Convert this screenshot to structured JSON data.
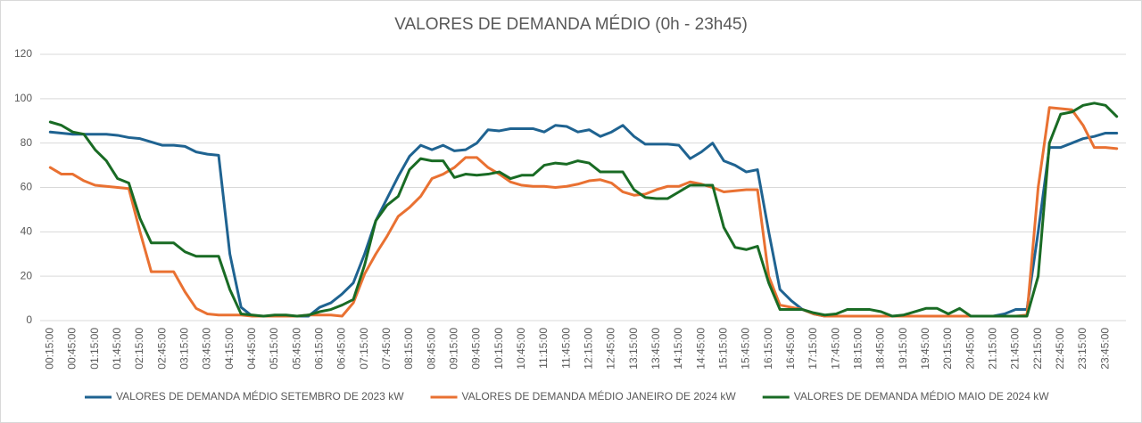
{
  "chart_data": {
    "type": "line",
    "title": "VALORES DE DEMANDA MÉDIO (0h - 23h45)",
    "categories": [
      "00:15:00",
      null,
      "00:45:00",
      null,
      "01:15:00",
      null,
      "01:45:00",
      null,
      "02:15:00",
      null,
      "02:45:00",
      null,
      "03:15:00",
      null,
      "03:45:00",
      null,
      "04:15:00",
      null,
      "04:45:00",
      null,
      "05:15:00",
      null,
      "05:45:00",
      null,
      "06:15:00",
      null,
      "06:45:00",
      null,
      "07:15:00",
      null,
      "07:45:00",
      null,
      "08:15:00",
      null,
      "08:45:00",
      null,
      "09:15:00",
      null,
      "09:45:00",
      null,
      "10:15:00",
      null,
      "10:45:00",
      null,
      "11:15:00",
      null,
      "11:45:00",
      null,
      "12:15:00",
      null,
      "12:45:00",
      null,
      "13:15:00",
      null,
      "13:45:00",
      null,
      "14:15:00",
      null,
      "14:45:00",
      null,
      "15:15:00",
      null,
      "15:45:00",
      null,
      "16:15:00",
      null,
      "16:45:00",
      null,
      "17:15:00",
      null,
      "17:45:00",
      null,
      "18:15:00",
      null,
      "18:45:00",
      null,
      "19:15:00",
      null,
      "19:45:00",
      null,
      "20:15:00",
      null,
      "20:45:00",
      null,
      "21:15:00",
      null,
      "21:45:00",
      null,
      "22:15:00",
      null,
      "22:45:00",
      null,
      "23:15:00",
      null,
      "23:45:00",
      null
    ],
    "series": [
      {
        "name": "VALORES DE DEMANDA MÉDIO SETEMBRO DE 2023 kW",
        "color": "#1f6391",
        "values": [
          85,
          84.5,
          84,
          84,
          84,
          84,
          83.5,
          82.5,
          82,
          80.5,
          79,
          79,
          78.5,
          76,
          75,
          74.5,
          30,
          6,
          2,
          2,
          2,
          2,
          2,
          2,
          6,
          8,
          12,
          17,
          30,
          45,
          55,
          65,
          74,
          79,
          77,
          79,
          76.5,
          77,
          80,
          86,
          85.5,
          86.5,
          86.5,
          86.5,
          85,
          88,
          87.5,
          85,
          86,
          83,
          85,
          88,
          83,
          79.5,
          79.5,
          79.5,
          79,
          73,
          76,
          80,
          72,
          70,
          67,
          68,
          40,
          14,
          9,
          5,
          3,
          2,
          2,
          2,
          2,
          2,
          2,
          2,
          2,
          2,
          2,
          2,
          2,
          2,
          2,
          2,
          2,
          3,
          5,
          5,
          40,
          78,
          78,
          80,
          82,
          83,
          84.5,
          84.5
        ]
      },
      {
        "name": "VALORES DE DEMANDA MÉDIO JANEIRO DE 2024 kW",
        "color": "#e97132",
        "values": [
          69,
          66,
          66,
          63,
          61,
          60.5,
          60,
          59.5,
          40,
          22,
          22,
          22,
          13,
          5.5,
          3,
          2.5,
          2.5,
          2.5,
          2,
          2,
          2,
          2,
          2,
          2.5,
          2.5,
          2.5,
          2,
          8,
          21,
          30,
          38,
          47,
          51,
          56,
          64,
          66,
          69,
          73.5,
          73.5,
          69,
          66,
          62.5,
          61,
          60.5,
          60.5,
          60,
          60.5,
          61.5,
          63,
          63.5,
          62,
          58,
          56.5,
          57,
          59,
          60.5,
          60.5,
          62.5,
          61.5,
          60,
          58,
          58.5,
          59,
          59,
          20,
          7,
          6,
          5,
          3,
          2,
          2,
          2,
          2,
          2,
          2,
          2,
          2,
          2,
          2,
          2,
          2,
          2,
          2,
          2,
          2,
          2,
          2,
          2.5,
          60,
          96,
          95.5,
          95,
          88,
          78,
          78,
          77.5
        ]
      },
      {
        "name": "VALORES DE DEMANDA MÉDIO MAIO DE 2024 kW",
        "color": "#196b24",
        "values": [
          89.5,
          88,
          85,
          84,
          77,
          72,
          64,
          62,
          46,
          35,
          35,
          35,
          31,
          29,
          29,
          29,
          14,
          3,
          2.5,
          2,
          2.5,
          2.5,
          2,
          2.5,
          4,
          5,
          7,
          9.5,
          25,
          45,
          52,
          56,
          68,
          73,
          72,
          72,
          64.5,
          66,
          65.5,
          66,
          67,
          64,
          65.5,
          65.5,
          70,
          71,
          70.5,
          72,
          71,
          67,
          67,
          67,
          59,
          55.5,
          55,
          55,
          58,
          61,
          61,
          61,
          42,
          33,
          32,
          33.5,
          17,
          5,
          5,
          5,
          3.5,
          2.5,
          3,
          5,
          5,
          5,
          4,
          2,
          2.5,
          4,
          5.5,
          5.5,
          3,
          5.5,
          2,
          2,
          2,
          2,
          2,
          2,
          20,
          80,
          93,
          94,
          97,
          98,
          97,
          92
        ]
      }
    ],
    "ylim": [
      0,
      120
    ],
    "yticks": [
      0,
      20,
      40,
      60,
      80,
      100,
      120
    ],
    "grid": true,
    "legend": "bottom"
  }
}
